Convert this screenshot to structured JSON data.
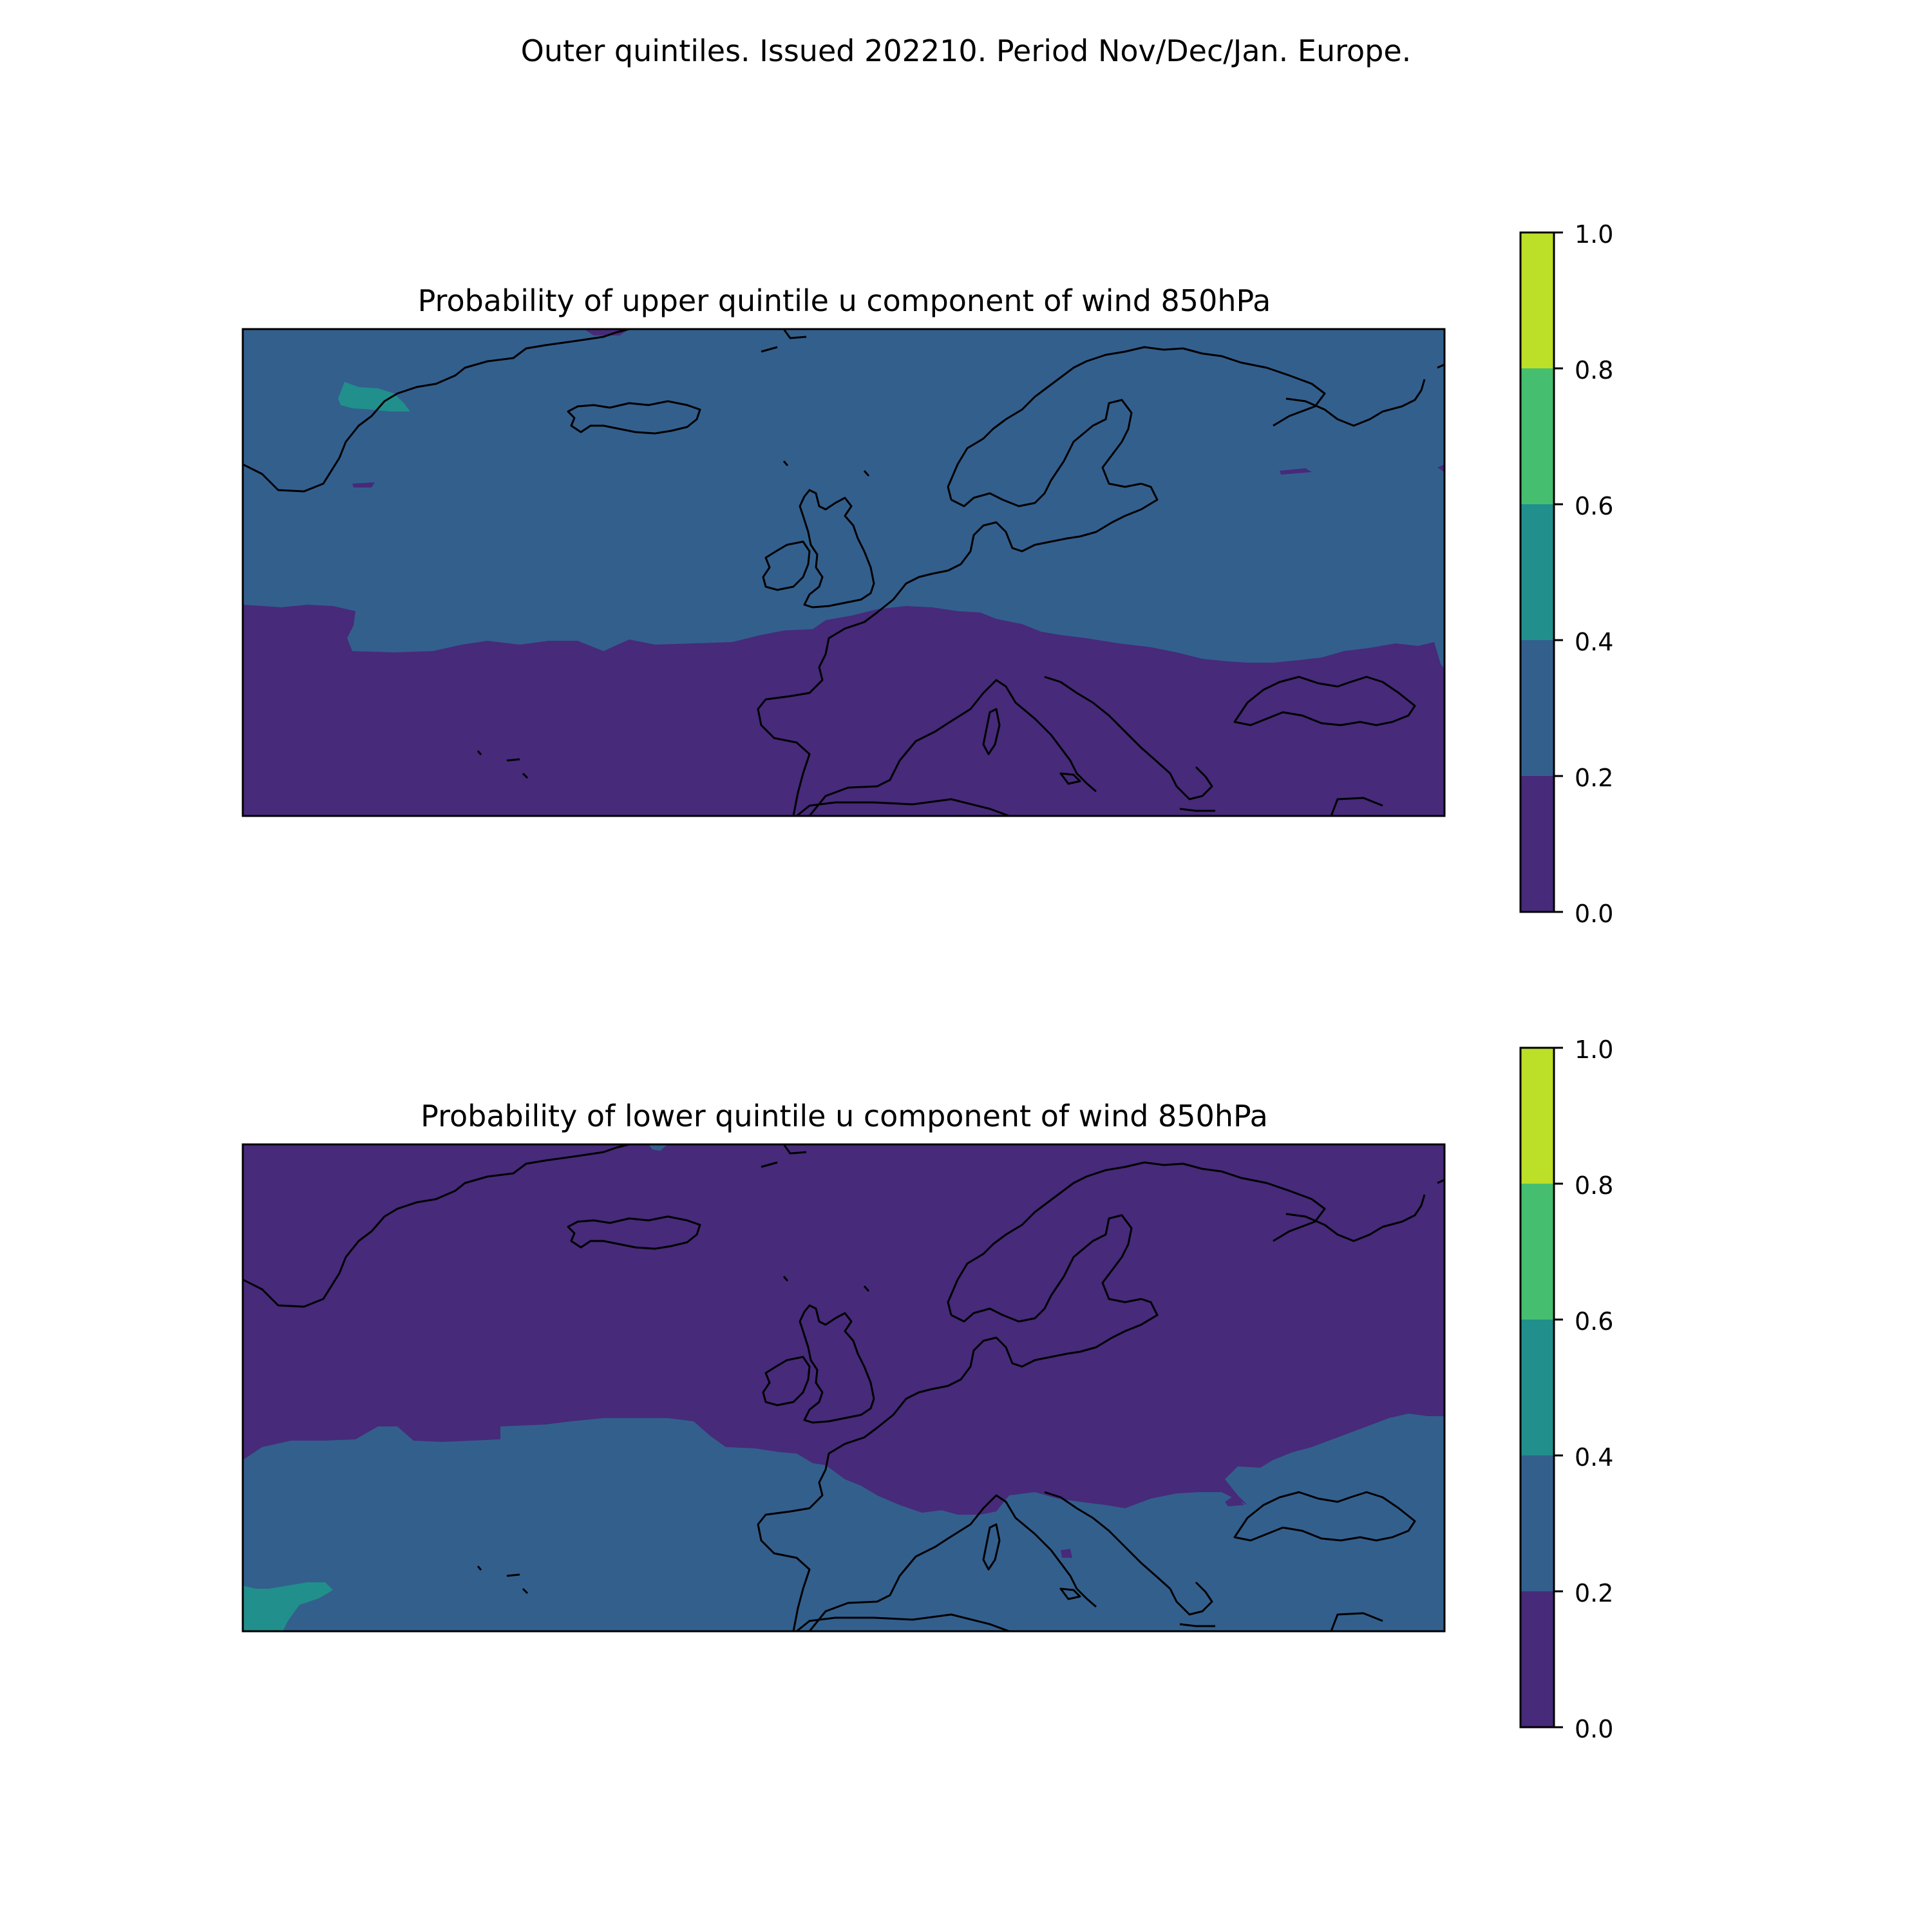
{
  "suptitle": "Outer quintiles. Issued 202210. Period Nov/Dec/Jan. Europe.",
  "colors": {
    "level_0_0_2": "#472a7a",
    "level_0_2_0_4": "#335f8d",
    "level_0_4_0_6": "#218f8c",
    "level_0_6_0_8": "#45bf6f",
    "level_0_8_1_0": "#bcdf27",
    "coastline": "#000000"
  },
  "map_extent": "Europe / North Atlantic",
  "panels": [
    {
      "title": "Probability of upper quintile u component of wind 850hPa",
      "colorbar": {
        "ticks": [
          "0.0",
          "0.2",
          "0.4",
          "0.6",
          "0.8",
          "1.0"
        ]
      },
      "regions": [
        {
          "class": "0.2-0.4",
          "area": "north (Atlantic, Greenland, Iceland, British Isles, Scandinavia, Baltic, Russia)"
        },
        {
          "class": "0.0-0.2",
          "area": "south (subtropical Atlantic, Iberia, Mediterranean, Balkans, Black Sea)"
        },
        {
          "class": "0.4-0.6",
          "area": "small patch off south-east Greenland"
        }
      ]
    },
    {
      "title": "Probability of lower quintile u component of wind 850hPa",
      "colorbar": {
        "ticks": [
          "0.0",
          "0.2",
          "0.4",
          "0.6",
          "0.8",
          "1.0"
        ]
      },
      "regions": [
        {
          "class": "0.0-0.2",
          "area": "north (Atlantic, Greenland, Iceland, British Isles, Scandinavia, Russia)"
        },
        {
          "class": "0.2-0.4",
          "area": "south (subtropical Atlantic, Iberia, Mediterranean, Balkans, Black Sea)"
        },
        {
          "class": "0.4-0.6",
          "area": "small patch in the south-west corner (subtropical Atlantic)"
        }
      ]
    }
  ]
}
